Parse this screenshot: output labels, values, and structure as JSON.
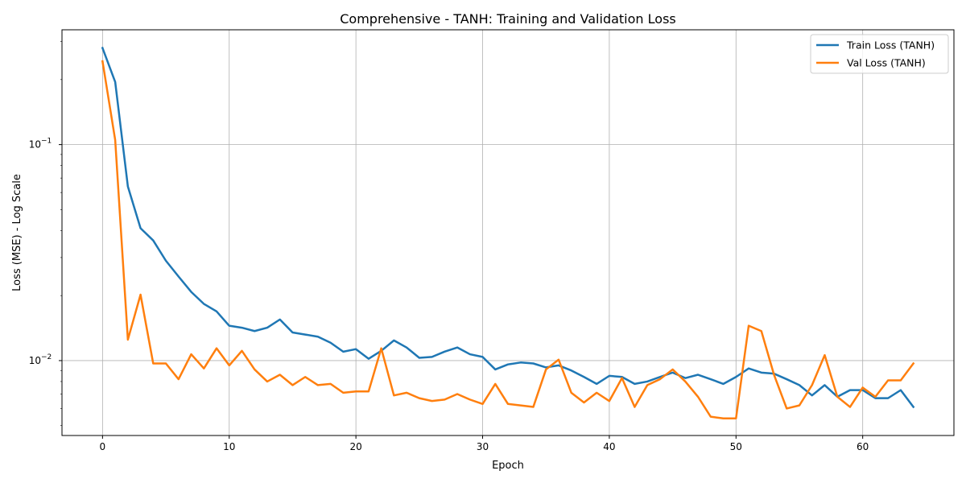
{
  "chart_data": {
    "type": "line",
    "title": "Comprehensive - TANH: Training and Validation Loss",
    "xlabel": "Epoch",
    "ylabel": "Loss (MSE) - Log Scale",
    "y_scale": "log",
    "xlim": [
      -3.2,
      67.2
    ],
    "ylim": [
      0.0045,
      0.34
    ],
    "x_ticks": [
      0,
      10,
      20,
      30,
      40,
      50,
      60
    ],
    "y_ticks": [
      {
        "value": 0.01,
        "base": "10",
        "exp": "−2"
      },
      {
        "value": 0.1,
        "base": "10",
        "exp": "−1"
      }
    ],
    "grid": true,
    "legend_position": "top-right",
    "x": [
      0,
      1,
      2,
      3,
      4,
      5,
      6,
      7,
      8,
      9,
      10,
      11,
      12,
      13,
      14,
      15,
      16,
      17,
      18,
      19,
      20,
      21,
      22,
      23,
      24,
      25,
      26,
      27,
      28,
      29,
      30,
      31,
      32,
      33,
      34,
      35,
      36,
      37,
      38,
      39,
      40,
      41,
      42,
      43,
      44,
      45,
      46,
      47,
      48,
      49,
      50,
      51,
      52,
      53,
      54,
      55,
      56,
      57,
      58,
      59,
      60,
      61,
      62,
      63,
      64
    ],
    "series": [
      {
        "name": "Train Loss (TANH)",
        "color": "#1f77b4",
        "values": [
          0.28,
          0.195,
          0.064,
          0.041,
          0.036,
          0.029,
          0.0245,
          0.0208,
          0.0183,
          0.0169,
          0.0145,
          0.0142,
          0.0137,
          0.0142,
          0.0155,
          0.0135,
          0.0132,
          0.0129,
          0.0121,
          0.011,
          0.0113,
          0.0102,
          0.0111,
          0.0124,
          0.0115,
          0.0103,
          0.0104,
          0.011,
          0.0115,
          0.0107,
          0.0104,
          0.0091,
          0.0096,
          0.0098,
          0.0097,
          0.0093,
          0.0095,
          0.009,
          0.0084,
          0.0078,
          0.0085,
          0.0084,
          0.0078,
          0.008,
          0.0084,
          0.0088,
          0.0083,
          0.0086,
          0.0082,
          0.0078,
          0.0084,
          0.0092,
          0.0088,
          0.0087,
          0.0082,
          0.0077,
          0.0069,
          0.0077,
          0.0068,
          0.0073,
          0.0073,
          0.0067,
          0.0067,
          0.0073,
          0.0061
        ]
      },
      {
        "name": "Val Loss (TANH)",
        "color": "#ff7f0e",
        "values": [
          0.243,
          0.105,
          0.0125,
          0.0202,
          0.0097,
          0.0097,
          0.0082,
          0.0107,
          0.0092,
          0.0114,
          0.0095,
          0.0111,
          0.0091,
          0.008,
          0.0086,
          0.0077,
          0.0084,
          0.0077,
          0.0078,
          0.0071,
          0.0072,
          0.0072,
          0.0114,
          0.0069,
          0.0071,
          0.0067,
          0.0065,
          0.0066,
          0.007,
          0.0066,
          0.0063,
          0.0078,
          0.0063,
          0.0062,
          0.0061,
          0.0091,
          0.0101,
          0.0071,
          0.0064,
          0.0071,
          0.0065,
          0.0083,
          0.0061,
          0.0077,
          0.0082,
          0.0091,
          0.008,
          0.0068,
          0.0055,
          0.0054,
          0.0054,
          0.0145,
          0.0137,
          0.0086,
          0.006,
          0.0062,
          0.0077,
          0.0106,
          0.0068,
          0.0061,
          0.0075,
          0.0068,
          0.0081,
          0.0081,
          0.0097
        ]
      }
    ]
  }
}
